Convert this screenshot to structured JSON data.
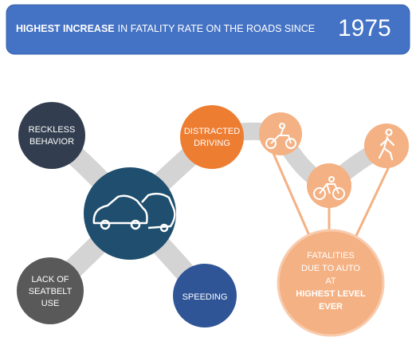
{
  "header": {
    "bold": "HIGHEST INCREASE",
    "text": "IN FATALITY RATE ON THE ROADS SINCE",
    "year": "1975"
  },
  "nodes": [
    {
      "lines": [
        "RECKLESS",
        "BEHAVIOR"
      ]
    },
    {
      "lines": [
        "DISTRACTED",
        "DRIVING"
      ]
    },
    {
      "lines": [
        "LACK OF",
        "SEATBELT",
        "USE"
      ]
    },
    {
      "lines": [
        "SPEEDING"
      ]
    }
  ],
  "fatalities": {
    "lines": [
      "FATALITIES",
      "DUE TO AUTO",
      "AT"
    ],
    "bold_lines": [
      "HIGHEST LEVEL",
      "EVER"
    ]
  }
}
